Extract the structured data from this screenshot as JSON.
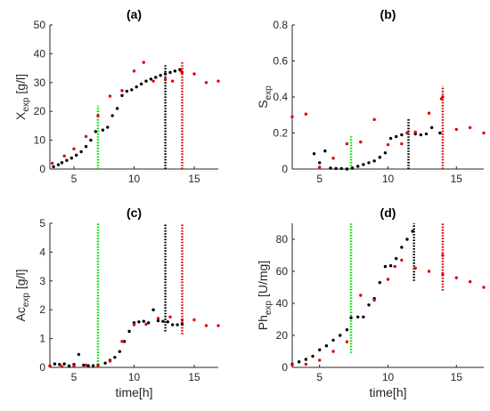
{
  "colors": {
    "black_series": "#000000",
    "red_series": "#e00000",
    "green_line": "#00dd00",
    "axis": "#262626"
  },
  "chart_data": [
    {
      "type": "scatter",
      "title": "(a)",
      "xlabel": "",
      "ylabel": "X",
      "ylabel_sub": "exp",
      "ylabel_unit": " [g/l]",
      "xlim": [
        3,
        17
      ],
      "ylim": [
        0,
        50
      ],
      "xticks": [
        5,
        10,
        15
      ],
      "yticks": [
        0,
        10,
        20,
        30,
        40,
        50
      ],
      "grid": false,
      "series": [
        {
          "color": "#000000",
          "points": [
            [
              3.3,
              0.8
            ],
            [
              3.7,
              1.5
            ],
            [
              4.0,
              2.2
            ],
            [
              4.4,
              3.0
            ],
            [
              4.8,
              3.8
            ],
            [
              5.2,
              4.8
            ],
            [
              5.6,
              6.0
            ],
            [
              6.0,
              7.8
            ],
            [
              6.4,
              10.0
            ],
            [
              6.8,
              13.0
            ],
            [
              7.4,
              13.5
            ],
            [
              7.8,
              14.5
            ],
            [
              8.2,
              18.5
            ],
            [
              8.6,
              21.0
            ],
            [
              9.0,
              25.5
            ],
            [
              9.4,
              27.0
            ],
            [
              9.8,
              27.5
            ],
            [
              10.2,
              28.5
            ],
            [
              10.6,
              29.5
            ],
            [
              11.0,
              30.5
            ],
            [
              11.4,
              31.2
            ],
            [
              11.8,
              31.8
            ],
            [
              12.2,
              32.5
            ],
            [
              12.6,
              33.0
            ],
            [
              13.0,
              33.5
            ],
            [
              13.4,
              34.0
            ],
            [
              13.8,
              34.5
            ]
          ]
        },
        {
          "color": "#e00000",
          "points": [
            [
              3.2,
              2.0
            ],
            [
              4.2,
              4.5
            ],
            [
              5.0,
              7.0
            ],
            [
              6.0,
              11.3
            ],
            [
              7.0,
              18.5
            ],
            [
              8.0,
              25.3
            ],
            [
              9.0,
              27.2
            ],
            [
              10.0,
              34.0
            ],
            [
              10.8,
              37.0
            ],
            [
              11.6,
              30.5
            ],
            [
              12.6,
              31.0
            ],
            [
              13.2,
              30.5
            ],
            [
              13.9,
              34.0
            ],
            [
              14.0,
              33.5
            ],
            [
              15.0,
              33.0
            ],
            [
              16.0,
              30.0
            ],
            [
              17.0,
              30.5
            ]
          ]
        }
      ],
      "vlines": [
        {
          "x": 7.0,
          "y": [
            0,
            22
          ],
          "color": "#00dd00"
        },
        {
          "x": 12.6,
          "y": [
            0,
            36
          ],
          "color": "#000000"
        },
        {
          "x": 14.0,
          "y": [
            0,
            37
          ],
          "color": "#e00000"
        }
      ]
    },
    {
      "type": "scatter",
      "title": "(b)",
      "xlabel": "",
      "ylabel": "S",
      "ylabel_sub": "exp",
      "ylabel_unit": "",
      "xlim": [
        3,
        17
      ],
      "ylim": [
        0,
        0.8
      ],
      "xticks": [
        5,
        10,
        15
      ],
      "yticks": [
        0,
        0.2,
        0.4,
        0.6,
        0.8
      ],
      "grid": false,
      "series": [
        {
          "color": "#000000",
          "points": [
            [
              4.6,
              0.085
            ],
            [
              5.0,
              0.035
            ],
            [
              5.4,
              0.1
            ],
            [
              5.8,
              0.005
            ],
            [
              6.2,
              0.003
            ],
            [
              6.6,
              0.003
            ],
            [
              7.0,
              0.0
            ],
            [
              7.4,
              0.005
            ],
            [
              7.8,
              0.015
            ],
            [
              8.2,
              0.025
            ],
            [
              8.6,
              0.035
            ],
            [
              9.0,
              0.045
            ],
            [
              9.4,
              0.065
            ],
            [
              9.8,
              0.09
            ],
            [
              10.2,
              0.17
            ],
            [
              10.6,
              0.18
            ],
            [
              11.0,
              0.19
            ],
            [
              11.4,
              0.2
            ],
            [
              12.0,
              0.195
            ],
            [
              12.4,
              0.19
            ],
            [
              12.8,
              0.195
            ],
            [
              13.2,
              0.23
            ],
            [
              13.8,
              0.2
            ]
          ]
        },
        {
          "color": "#e00000",
          "points": [
            [
              3.0,
              0.29
            ],
            [
              4.0,
              0.305
            ],
            [
              5.0,
              0.01
            ],
            [
              6.0,
              0.06
            ],
            [
              7.0,
              0.14
            ],
            [
              8.0,
              0.15
            ],
            [
              9.0,
              0.275
            ],
            [
              10.0,
              0.135
            ],
            [
              11.0,
              0.14
            ],
            [
              11.4,
              0.2
            ],
            [
              12.0,
              0.205
            ],
            [
              13.0,
              0.31
            ],
            [
              13.9,
              0.39
            ],
            [
              14.0,
              0.4
            ],
            [
              15.0,
              0.22
            ],
            [
              16.0,
              0.23
            ],
            [
              17.0,
              0.2
            ]
          ]
        }
      ],
      "vlines": [
        {
          "x": 7.3,
          "y": [
            0,
            0.19
          ],
          "color": "#00dd00"
        },
        {
          "x": 11.5,
          "y": [
            0,
            0.28
          ],
          "color": "#000000"
        },
        {
          "x": 14.0,
          "y": [
            0,
            0.46
          ],
          "color": "#e00000"
        }
      ]
    },
    {
      "type": "scatter",
      "title": "(c)",
      "xlabel": "time[h]",
      "ylabel": "Ac",
      "ylabel_sub": "exp",
      "ylabel_unit": " [g/l]",
      "xlim": [
        3,
        17
      ],
      "ylim": [
        0,
        5
      ],
      "xticks": [
        5,
        10,
        15
      ],
      "yticks": [
        0,
        1,
        2,
        3,
        4,
        5
      ],
      "grid": false,
      "series": [
        {
          "color": "#000000",
          "points": [
            [
              3.0,
              0.05
            ],
            [
              3.4,
              0.12
            ],
            [
              3.8,
              0.1
            ],
            [
              4.2,
              0.12
            ],
            [
              4.6,
              0.05
            ],
            [
              5.0,
              0.1
            ],
            [
              5.4,
              0.45
            ],
            [
              5.8,
              0.08
            ],
            [
              6.2,
              0.06
            ],
            [
              6.6,
              0.06
            ],
            [
              7.0,
              0.07
            ],
            [
              7.6,
              0.15
            ],
            [
              8.0,
              0.25
            ],
            [
              8.4,
              0.35
            ],
            [
              8.8,
              0.55
            ],
            [
              9.2,
              0.9
            ],
            [
              9.6,
              1.25
            ],
            [
              10.0,
              1.55
            ],
            [
              10.4,
              1.58
            ],
            [
              10.8,
              1.6
            ],
            [
              11.2,
              1.55
            ],
            [
              11.6,
              2.0
            ],
            [
              12.0,
              1.62
            ],
            [
              12.4,
              1.6
            ],
            [
              12.8,
              1.58
            ],
            [
              13.2,
              1.48
            ],
            [
              13.6,
              1.48
            ],
            [
              14.0,
              1.5
            ]
          ]
        },
        {
          "color": "#e00000",
          "points": [
            [
              3.0,
              0.05
            ],
            [
              4.0,
              0.03
            ],
            [
              5.0,
              0.05
            ],
            [
              6.0,
              0.08
            ],
            [
              7.0,
              0.06
            ],
            [
              8.0,
              0.22
            ],
            [
              9.0,
              0.9
            ],
            [
              10.0,
              1.48
            ],
            [
              11.0,
              1.5
            ],
            [
              12.0,
              1.7
            ],
            [
              13.0,
              1.75
            ],
            [
              14.0,
              1.65
            ],
            [
              15.0,
              1.65
            ],
            [
              16.0,
              1.45
            ],
            [
              17.0,
              1.45
            ]
          ]
        }
      ],
      "vlines": [
        {
          "x": 7.0,
          "y": [
            0,
            5
          ],
          "color": "#00dd00"
        },
        {
          "x": 12.6,
          "y": [
            1.25,
            5
          ],
          "color": "#000000"
        },
        {
          "x": 14.0,
          "y": [
            1.15,
            5
          ],
          "color": "#e00000"
        }
      ]
    },
    {
      "type": "scatter",
      "title": "(d)",
      "xlabel": "time[h]",
      "ylabel": "Ph",
      "ylabel_sub": "exp",
      "ylabel_unit": " [U/mg]",
      "xlim": [
        3,
        17
      ],
      "ylim": [
        0,
        90
      ],
      "xticks": [
        5,
        10,
        15
      ],
      "yticks": [
        0,
        20,
        40,
        60,
        80
      ],
      "grid": false,
      "series": [
        {
          "color": "#000000",
          "points": [
            [
              3.0,
              2.0
            ],
            [
              3.5,
              3.5
            ],
            [
              4.0,
              5.0
            ],
            [
              4.5,
              7.0
            ],
            [
              5.0,
              11.0
            ],
            [
              5.5,
              13.5
            ],
            [
              6.0,
              17.0
            ],
            [
              6.5,
              20.0
            ],
            [
              7.0,
              23.5
            ],
            [
              7.3,
              31.0
            ],
            [
              7.8,
              31.5
            ],
            [
              8.2,
              31.5
            ],
            [
              8.6,
              39.0
            ],
            [
              9.0,
              43.0
            ],
            [
              9.4,
              53.0
            ],
            [
              9.8,
              63.0
            ],
            [
              10.2,
              63.5
            ],
            [
              10.6,
              68.0
            ],
            [
              11.0,
              75.0
            ],
            [
              11.4,
              80.0
            ],
            [
              11.8,
              85.0
            ]
          ]
        },
        {
          "color": "#e00000",
          "points": [
            [
              3.0,
              1.5
            ],
            [
              4.0,
              2.0
            ],
            [
              5.0,
              4.5
            ],
            [
              6.0,
              10.0
            ],
            [
              7.0,
              16.0
            ],
            [
              8.0,
              45.0
            ],
            [
              9.0,
              42.0
            ],
            [
              10.0,
              55.0
            ],
            [
              10.5,
              63.0
            ],
            [
              11.0,
              67.0
            ],
            [
              12.0,
              62.0
            ],
            [
              13.0,
              60.0
            ],
            [
              14.0,
              70.0
            ],
            [
              14.0,
              58.0
            ],
            [
              15.0,
              56.0
            ],
            [
              16.0,
              53.5
            ],
            [
              17.0,
              50.0
            ]
          ]
        }
      ],
      "vlines": [
        {
          "x": 7.3,
          "y": [
            9,
            90
          ],
          "color": "#00dd00"
        },
        {
          "x": 11.9,
          "y": [
            54,
            90
          ],
          "color": "#000000"
        },
        {
          "x": 14.0,
          "y": [
            48,
            90
          ],
          "color": "#e00000"
        }
      ]
    }
  ]
}
